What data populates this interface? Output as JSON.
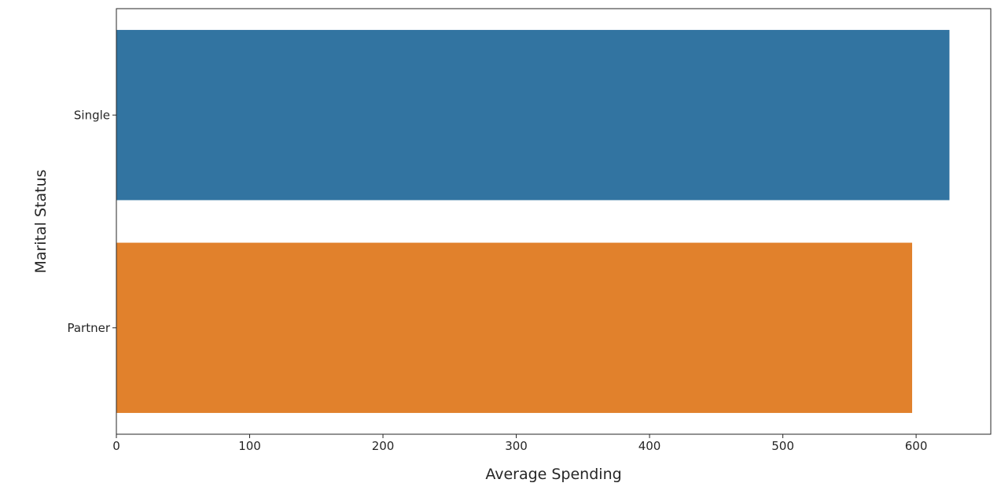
{
  "chart_data": {
    "type": "bar",
    "orientation": "horizontal",
    "categories": [
      "Single",
      "Partner"
    ],
    "values": [
      625,
      597
    ],
    "colors": [
      "#3274a1",
      "#e1812c"
    ],
    "xlabel": "Average Spending",
    "ylabel": "Marital Status",
    "xlim": [
      0,
      656
    ],
    "xticks": [
      0,
      100,
      200,
      300,
      400,
      500,
      600
    ],
    "grid": false,
    "legend": "none"
  }
}
